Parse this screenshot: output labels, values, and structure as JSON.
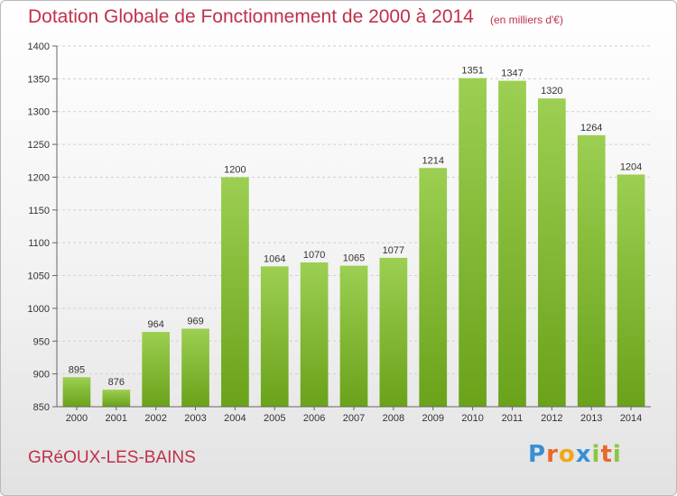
{
  "title": "Dotation Globale de Fonctionnement de 2000 à 2014",
  "subtitle": "(en milliers d'€)",
  "commune": "GRéOUX-LES-BAINS",
  "logo": {
    "letters": [
      "P",
      "r",
      "o",
      "x",
      "i",
      "t",
      "i"
    ],
    "colors": [
      "#3a8fd4",
      "#e8692a",
      "#f0a818",
      "#3a8fd4",
      "#8cc63e",
      "#e8692a",
      "#8cc63e"
    ]
  },
  "colors": {
    "bar_top": "#9ccf52",
    "bar_bottom": "#6aa21a",
    "title": "#c0304a",
    "grid": "#d0d0d0"
  },
  "chart_data": {
    "type": "bar",
    "categories": [
      "2000",
      "2001",
      "2002",
      "2003",
      "2004",
      "2005",
      "2006",
      "2007",
      "2008",
      "2009",
      "2010",
      "2011",
      "2012",
      "2013",
      "2014"
    ],
    "values": [
      895,
      876,
      964,
      969,
      1200,
      1064,
      1070,
      1065,
      1077,
      1214,
      1351,
      1347,
      1320,
      1264,
      1204
    ],
    "ylim": [
      850,
      1400
    ],
    "yticks": [
      850,
      900,
      950,
      1000,
      1050,
      1100,
      1150,
      1200,
      1250,
      1300,
      1350,
      1400
    ],
    "grid": true,
    "xlabel": "",
    "ylabel": ""
  }
}
